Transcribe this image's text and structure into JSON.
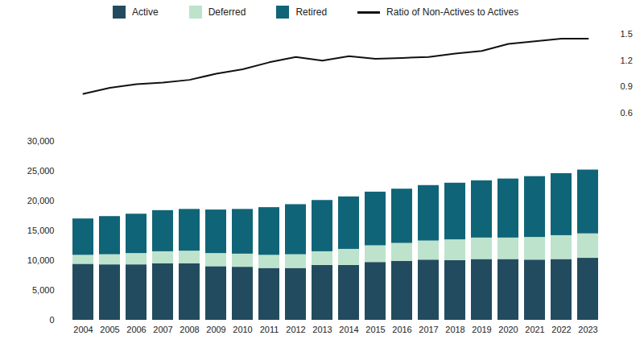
{
  "chart_data": [
    {
      "type": "line",
      "categories": [
        "2004",
        "2005",
        "2006",
        "2007",
        "2008",
        "2009",
        "2010",
        "2011",
        "2012",
        "2013",
        "2014",
        "2015",
        "2016",
        "2017",
        "2018",
        "2019",
        "2020",
        "2021",
        "2022",
        "2023"
      ],
      "series": [
        {
          "name": "Ratio of Non-Actives to Actives",
          "color": "#111111",
          "values": [
            0.82,
            0.89,
            0.93,
            0.95,
            0.98,
            1.05,
            1.1,
            1.18,
            1.24,
            1.2,
            1.25,
            1.22,
            1.23,
            1.24,
            1.28,
            1.31,
            1.39,
            1.42,
            1.45,
            1.45
          ]
        }
      ],
      "ylim": [
        0.6,
        1.5
      ],
      "yticks": [
        0.6,
        0.9,
        1.2,
        1.5
      ],
      "tick_labels": "y",
      "legend": "top"
    },
    {
      "type": "bar",
      "stacked": true,
      "categories": [
        "2004",
        "2005",
        "2006",
        "2007",
        "2008",
        "2009",
        "2010",
        "2011",
        "2012",
        "2013",
        "2014",
        "2015",
        "2016",
        "2017",
        "2018",
        "2019",
        "2020",
        "2021",
        "2022",
        "2023"
      ],
      "series": [
        {
          "name": "Active",
          "color": "#234b5f",
          "values": [
            9400,
            9300,
            9300,
            9500,
            9500,
            9000,
            8900,
            8700,
            8700,
            9200,
            9200,
            9700,
            9900,
            10100,
            10000,
            10200,
            10200,
            10100,
            10200,
            10400
          ]
        },
        {
          "name": "Deferred",
          "color": "#bde3cc",
          "values": [
            1500,
            1700,
            1900,
            2000,
            2100,
            2200,
            2200,
            2200,
            2300,
            2300,
            2700,
            2800,
            3000,
            3200,
            3500,
            3600,
            3600,
            3800,
            4000,
            4100
          ]
        },
        {
          "name": "Retired",
          "color": "#0f6577",
          "values": [
            6100,
            6400,
            6600,
            6900,
            7000,
            7300,
            7500,
            8000,
            8400,
            8600,
            8800,
            9000,
            9100,
            9300,
            9500,
            9600,
            9900,
            10200,
            10400,
            10700
          ]
        }
      ],
      "ylim": [
        0,
        30000
      ],
      "yticks": [
        0,
        {
          "value": 5000,
          "label": "5,000"
        },
        {
          "value": 10000,
          "label": "10,000"
        },
        {
          "value": 15000,
          "label": "15,000"
        },
        {
          "value": 20000,
          "label": "20,000"
        },
        {
          "value": 25000,
          "label": "25,000"
        },
        {
          "value": 30000,
          "label": "30,000"
        }
      ],
      "legend": "top"
    }
  ]
}
